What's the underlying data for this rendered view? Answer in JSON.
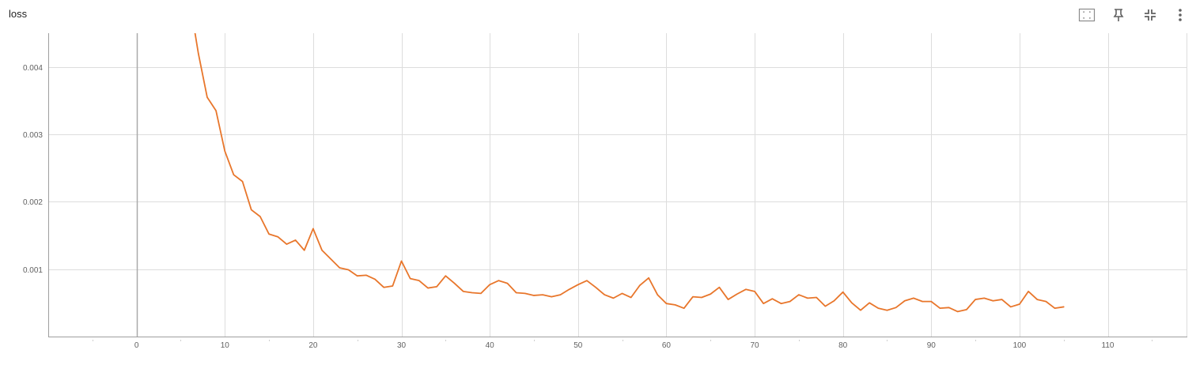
{
  "card": {
    "title": "loss"
  },
  "toolbar": {
    "icons": [
      "fit-domain-icon",
      "pin-icon",
      "collapse-icon",
      "more-vert-icon"
    ]
  },
  "colors": {
    "line": "#e8762b",
    "grid": "#dddddd",
    "axis": "#9e9e9e",
    "zero_axis": "#aaaaaa",
    "tick_text": "#616161"
  },
  "chart_data": {
    "type": "line",
    "title": "loss",
    "xlabel": "",
    "ylabel": "",
    "xlim": [
      -10,
      119
    ],
    "ylim": [
      0,
      0.0045
    ],
    "x_ticks": [
      0,
      10,
      20,
      30,
      40,
      50,
      60,
      70,
      80,
      90,
      100,
      110
    ],
    "x_tick_labels": [
      "0",
      "10",
      "20",
      "30",
      "40",
      "50",
      "60",
      "70",
      "80",
      "90",
      "100",
      "110"
    ],
    "y_ticks": [
      0.001,
      0.002,
      0.003,
      0.004
    ],
    "y_tick_labels": [
      "0.001",
      "0.002",
      "0.003",
      "0.004"
    ],
    "grid": true,
    "series": [
      {
        "name": "",
        "color": "#e8762b",
        "x": [
          6,
          7,
          8,
          9,
          10,
          11,
          12,
          13,
          14,
          15,
          16,
          17,
          18,
          19,
          20,
          21,
          22,
          23,
          24,
          25,
          26,
          27,
          28,
          29,
          30,
          31,
          32,
          33,
          34,
          35,
          36,
          37,
          38,
          39,
          40,
          41,
          42,
          43,
          44,
          45,
          46,
          47,
          48,
          49,
          50,
          51,
          52,
          53,
          54,
          55,
          56,
          57,
          58,
          59,
          60,
          61,
          62,
          63,
          64,
          65,
          66,
          67,
          68,
          69,
          70,
          71,
          72,
          73,
          74,
          75,
          76,
          77,
          78,
          79,
          80,
          81,
          82,
          83,
          84,
          85,
          86,
          87,
          88,
          89,
          90,
          91,
          92,
          93,
          94,
          95,
          96,
          97,
          98,
          99,
          100,
          101,
          102,
          103,
          104,
          105
        ],
        "values": [
          0.005,
          0.0042,
          0.00355,
          0.00335,
          0.00275,
          0.0024,
          0.0023,
          0.00188,
          0.00178,
          0.00152,
          0.00148,
          0.00137,
          0.00143,
          0.00128,
          0.0016,
          0.00128,
          0.00115,
          0.00102,
          0.00099,
          0.0009,
          0.00091,
          0.00085,
          0.00073,
          0.00075,
          0.00112,
          0.00086,
          0.00083,
          0.00072,
          0.00074,
          0.0009,
          0.00079,
          0.00067,
          0.00065,
          0.00064,
          0.00077,
          0.00083,
          0.00079,
          0.00065,
          0.00064,
          0.00061,
          0.00062,
          0.00059,
          0.00062,
          0.0007,
          0.00077,
          0.00083,
          0.00073,
          0.00062,
          0.00057,
          0.00064,
          0.00058,
          0.00076,
          0.00087,
          0.00062,
          0.00049,
          0.00047,
          0.00042,
          0.00059,
          0.00058,
          0.00063,
          0.00073,
          0.00055,
          0.00063,
          0.0007,
          0.00067,
          0.00049,
          0.00056,
          0.00049,
          0.00052,
          0.00062,
          0.00057,
          0.00058,
          0.00045,
          0.00053,
          0.00066,
          0.0005,
          0.00039,
          0.0005,
          0.00042,
          0.00039,
          0.00043,
          0.00053,
          0.00057,
          0.00052,
          0.00052,
          0.00042,
          0.00043,
          0.00037,
          0.0004,
          0.00055,
          0.00057,
          0.00053,
          0.00055,
          0.00044,
          0.00048,
          0.00067,
          0.00055,
          0.00052,
          0.00042,
          0.00044
        ]
      }
    ]
  }
}
